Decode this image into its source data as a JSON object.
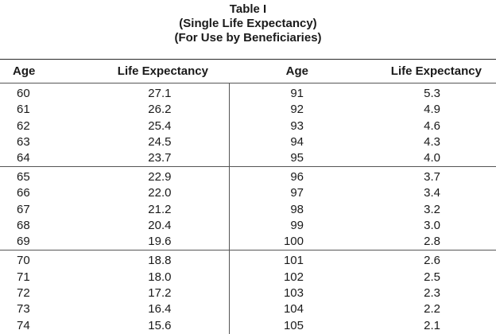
{
  "title": {
    "line1": "Table I",
    "line2": "(Single Life Expectancy)",
    "line3": "(For Use by Beneficiaries)"
  },
  "headers": {
    "age_left": "Age",
    "life_left": "Life Expectancy",
    "age_right": "Age",
    "life_right": "Life Expectancy"
  },
  "groups": [
    [
      [
        "60",
        "27.1",
        "91",
        "5.3"
      ],
      [
        "61",
        "26.2",
        "92",
        "4.9"
      ],
      [
        "62",
        "25.4",
        "93",
        "4.6"
      ],
      [
        "63",
        "24.5",
        "94",
        "4.3"
      ],
      [
        "64",
        "23.7",
        "95",
        "4.0"
      ]
    ],
    [
      [
        "65",
        "22.9",
        "96",
        "3.7"
      ],
      [
        "66",
        "22.0",
        "97",
        "3.4"
      ],
      [
        "67",
        "21.2",
        "98",
        "3.2"
      ],
      [
        "68",
        "20.4",
        "99",
        "3.0"
      ],
      [
        "69",
        "19.6",
        "100",
        "2.8"
      ]
    ],
    [
      [
        "70",
        "18.8",
        "101",
        "2.6"
      ],
      [
        "71",
        "18.0",
        "102",
        "2.5"
      ],
      [
        "72",
        "17.2",
        "103",
        "2.3"
      ],
      [
        "73",
        "16.4",
        "104",
        "2.2"
      ],
      [
        "74",
        "15.6",
        "105",
        "2.1"
      ]
    ]
  ]
}
